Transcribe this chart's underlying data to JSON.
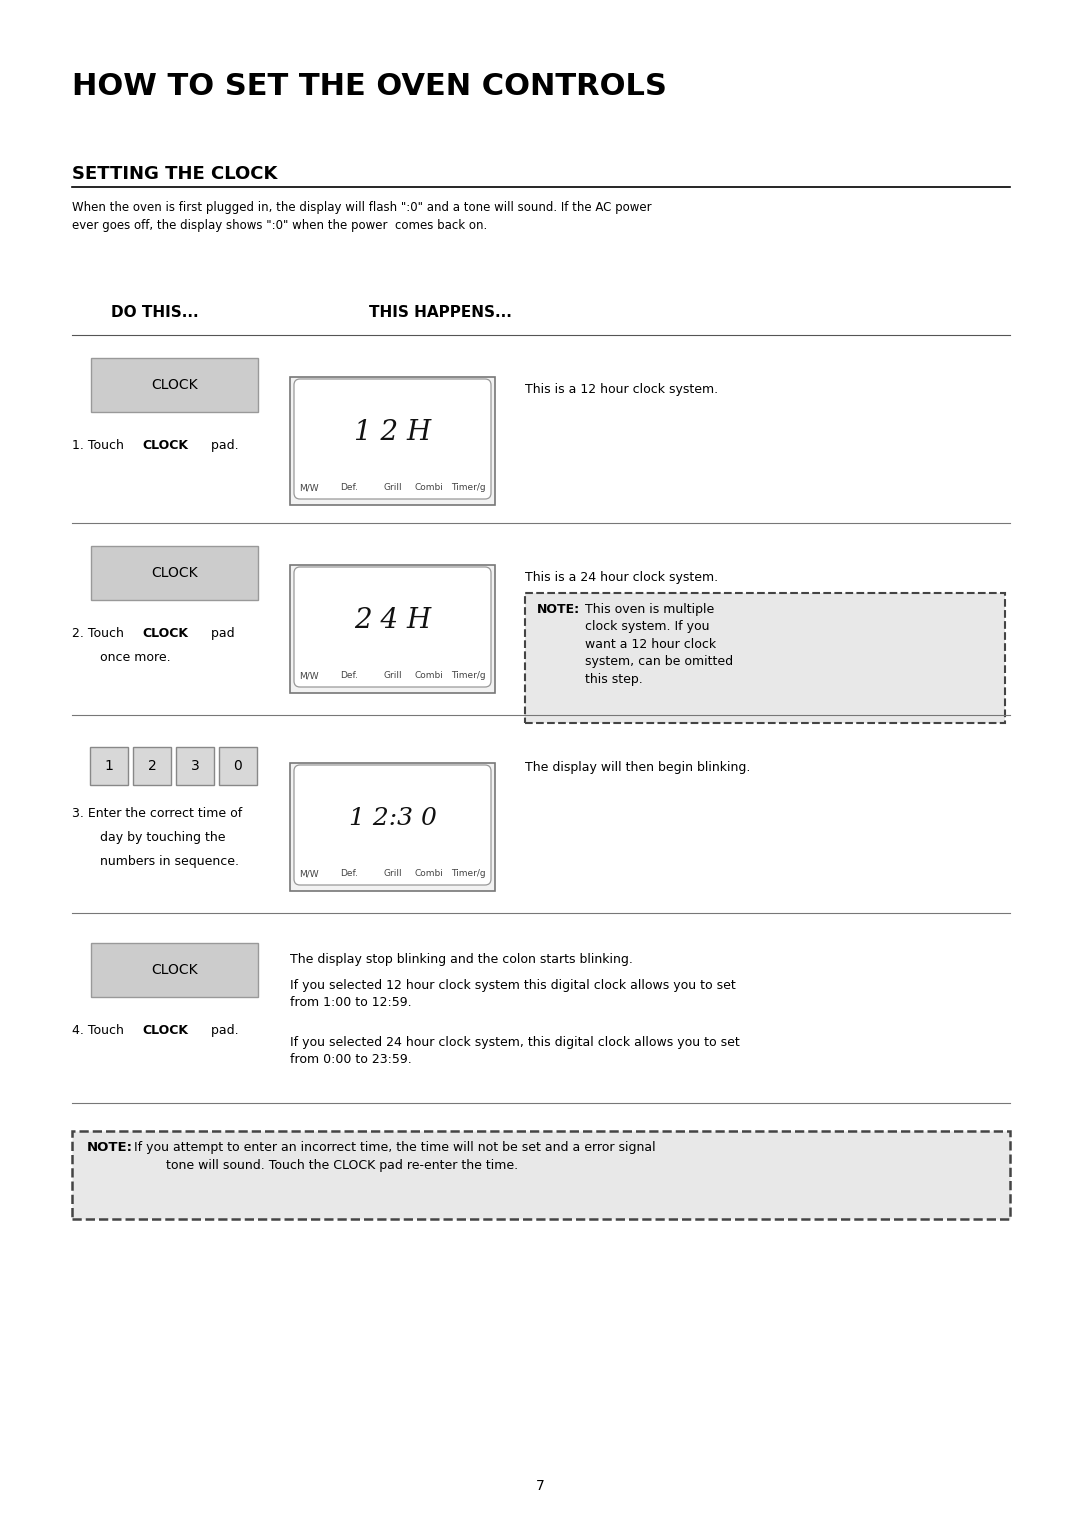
{
  "title": "HOW TO SET THE OVEN CONTROLS",
  "section_title": "SETTING THE CLOCK",
  "intro_text": "When the oven is first plugged in, the display will flash \":0\" and a tone will sound. If the AC power\never goes off, the display shows \":0\" when the power  comes back on.",
  "col1_header": "DO THIS...",
  "col2_header": "THIS HAPPENS...",
  "display_labels": [
    "M/W",
    "Def.",
    "Grill",
    "Combi",
    "Timer/g"
  ],
  "step1_button": "CLOCK",
  "step1_display": "1 2 H",
  "step1_note": "This is a 12 hour clock system.",
  "step2_button": "CLOCK",
  "step2_display": "2 4 H",
  "step2_desc": "This is a 24 hour clock system.",
  "step2_note_label": "NOTE:",
  "step2_note_text": "This oven is multiple\nclock system. If you\nwant a 12 hour clock\nsystem, can be omitted\nthis step.",
  "step3_buttons": [
    "1",
    "2",
    "3",
    "0"
  ],
  "step3_display": "1 2:3 0",
  "step3_note": "The display will then begin blinking.",
  "step4_button": "CLOCK",
  "step4_desc1": "The display stop blinking and the colon starts blinking.",
  "step4_desc2": "If you selected 12 hour clock system this digital clock allows you to set\nfrom 1:00 to 12:59.",
  "step4_desc3": "If you selected 24 hour clock system, this digital clock allows you to set\nfrom 0:00 to 23:59.",
  "bottom_note_label": "NOTE:",
  "bottom_note_text": "If you attempt to enter an incorrect time, the time will not be set and a error signal\n        tone will sound. Touch the CLOCK pad re-enter the time.",
  "page_number": "7",
  "bg_color": "#ffffff"
}
